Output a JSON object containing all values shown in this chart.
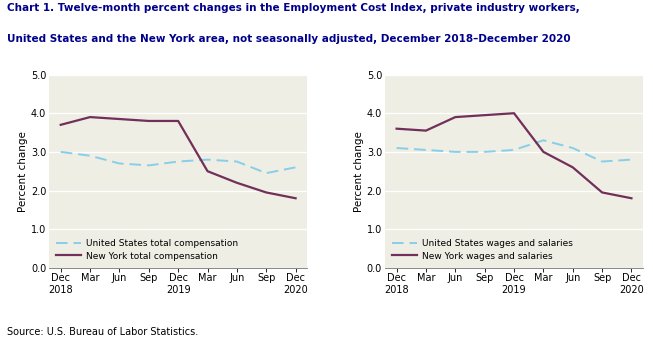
{
  "title_line1": "Chart 1. Twelve-month percent changes in the Employment Cost Index, private industry workers,",
  "title_line2": "United States and the New York area, not seasonally adjusted, December 2018–December 2020",
  "source": "Source: U.S. Bureau of Labor Statistics.",
  "x_labels": [
    "Dec\n2018",
    "Mar",
    "Jun",
    "Sep",
    "Dec\n2019",
    "Mar",
    "Jun",
    "Sep",
    "Dec\n2020"
  ],
  "chart1": {
    "ylabel": "Percent change",
    "us_total_comp": [
      3.0,
      2.9,
      2.7,
      2.65,
      2.75,
      2.8,
      2.75,
      2.45,
      2.6
    ],
    "ny_total_comp": [
      3.7,
      3.9,
      3.85,
      3.8,
      3.8,
      2.5,
      2.2,
      1.95,
      1.8
    ],
    "legend1": "United States total compensation",
    "legend2": "New York total compensation"
  },
  "chart2": {
    "ylabel": "Percent change",
    "us_wages_sal": [
      3.1,
      3.05,
      3.0,
      3.0,
      3.05,
      3.3,
      3.1,
      2.75,
      2.8
    ],
    "ny_wages_sal": [
      3.6,
      3.55,
      3.9,
      3.95,
      4.0,
      3.0,
      2.6,
      1.95,
      1.8
    ],
    "legend1": "United States wages and salaries",
    "legend2": "New York wages and salaries"
  },
  "ylim": [
    0.0,
    5.0
  ],
  "yticks": [
    0.0,
    1.0,
    2.0,
    3.0,
    4.0,
    5.0
  ],
  "us_color": "#87CEEB",
  "ny_color": "#722F5A",
  "plot_bg_color": "#EEEEE4",
  "title_color": "#00008B",
  "ylabel_fontsize": 7.5,
  "tick_fontsize": 7.0,
  "legend_fontsize": 6.5,
  "title_fontsize": 7.5
}
